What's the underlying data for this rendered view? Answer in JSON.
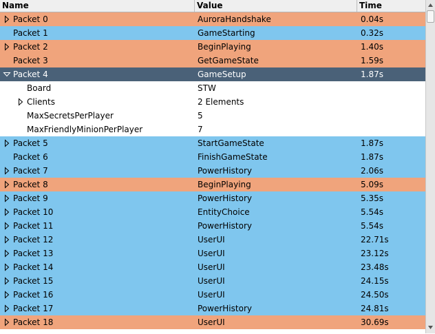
{
  "header": {
    "name": "Name",
    "value": "Value",
    "time": "Time"
  },
  "colors": {
    "orange": "#f0a47c",
    "blue": "#7fc6ee",
    "selected": "#4a6178",
    "white": "#ffffff"
  },
  "rows": [
    {
      "name": "Packet 0",
      "value": "AuroraHandshake",
      "time": "0.04s",
      "color": "orange",
      "level": 0,
      "arrow": "right"
    },
    {
      "name": "Packet 1",
      "value": "GameStarting",
      "time": "0.32s",
      "color": "blue",
      "level": 0,
      "arrow": ""
    },
    {
      "name": "Packet 2",
      "value": "BeginPlaying",
      "time": "1.40s",
      "color": "orange",
      "level": 0,
      "arrow": "right"
    },
    {
      "name": "Packet 3",
      "value": "GetGameState",
      "time": "1.59s",
      "color": "orange",
      "level": 0,
      "arrow": ""
    },
    {
      "name": "Packet 4",
      "value": "GameSetup",
      "time": "1.87s",
      "color": "selected",
      "level": 0,
      "arrow": "down"
    },
    {
      "name": "Board",
      "value": "STW",
      "time": "",
      "color": "white",
      "level": 1,
      "arrow": ""
    },
    {
      "name": "Clients",
      "value": "2 Elements",
      "time": "",
      "color": "white",
      "level": 1,
      "arrow": "right"
    },
    {
      "name": "MaxSecretsPerPlayer",
      "value": "5",
      "time": "",
      "color": "white",
      "level": 1,
      "arrow": ""
    },
    {
      "name": "MaxFriendlyMinionPerPlayer",
      "value": "7",
      "time": "",
      "color": "white",
      "level": 1,
      "arrow": ""
    },
    {
      "name": "Packet 5",
      "value": "StartGameState",
      "time": "1.87s",
      "color": "blue",
      "level": 0,
      "arrow": "right"
    },
    {
      "name": "Packet 6",
      "value": "FinishGameState",
      "time": "1.87s",
      "color": "blue",
      "level": 0,
      "arrow": ""
    },
    {
      "name": "Packet 7",
      "value": "PowerHistory",
      "time": "2.06s",
      "color": "blue",
      "level": 0,
      "arrow": "right"
    },
    {
      "name": "Packet 8",
      "value": "BeginPlaying",
      "time": "5.09s",
      "color": "orange",
      "level": 0,
      "arrow": "right"
    },
    {
      "name": "Packet 9",
      "value": "PowerHistory",
      "time": "5.35s",
      "color": "blue",
      "level": 0,
      "arrow": "right"
    },
    {
      "name": "Packet 10",
      "value": "EntityChoice",
      "time": "5.54s",
      "color": "blue",
      "level": 0,
      "arrow": "right"
    },
    {
      "name": "Packet 11",
      "value": "PowerHistory",
      "time": "5.54s",
      "color": "blue",
      "level": 0,
      "arrow": "right"
    },
    {
      "name": "Packet 12",
      "value": "UserUI",
      "time": "22.71s",
      "color": "blue",
      "level": 0,
      "arrow": "right"
    },
    {
      "name": "Packet 13",
      "value": "UserUI",
      "time": "23.12s",
      "color": "blue",
      "level": 0,
      "arrow": "right"
    },
    {
      "name": "Packet 14",
      "value": "UserUI",
      "time": "23.48s",
      "color": "blue",
      "level": 0,
      "arrow": "right"
    },
    {
      "name": "Packet 15",
      "value": "UserUI",
      "time": "24.15s",
      "color": "blue",
      "level": 0,
      "arrow": "right"
    },
    {
      "name": "Packet 16",
      "value": "UserUI",
      "time": "24.50s",
      "color": "blue",
      "level": 0,
      "arrow": "right"
    },
    {
      "name": "Packet 17",
      "value": "PowerHistory",
      "time": "24.81s",
      "color": "blue",
      "level": 0,
      "arrow": "right"
    },
    {
      "name": "Packet 18",
      "value": "UserUI",
      "time": "30.69s",
      "color": "orange",
      "level": 0,
      "arrow": "right"
    }
  ]
}
